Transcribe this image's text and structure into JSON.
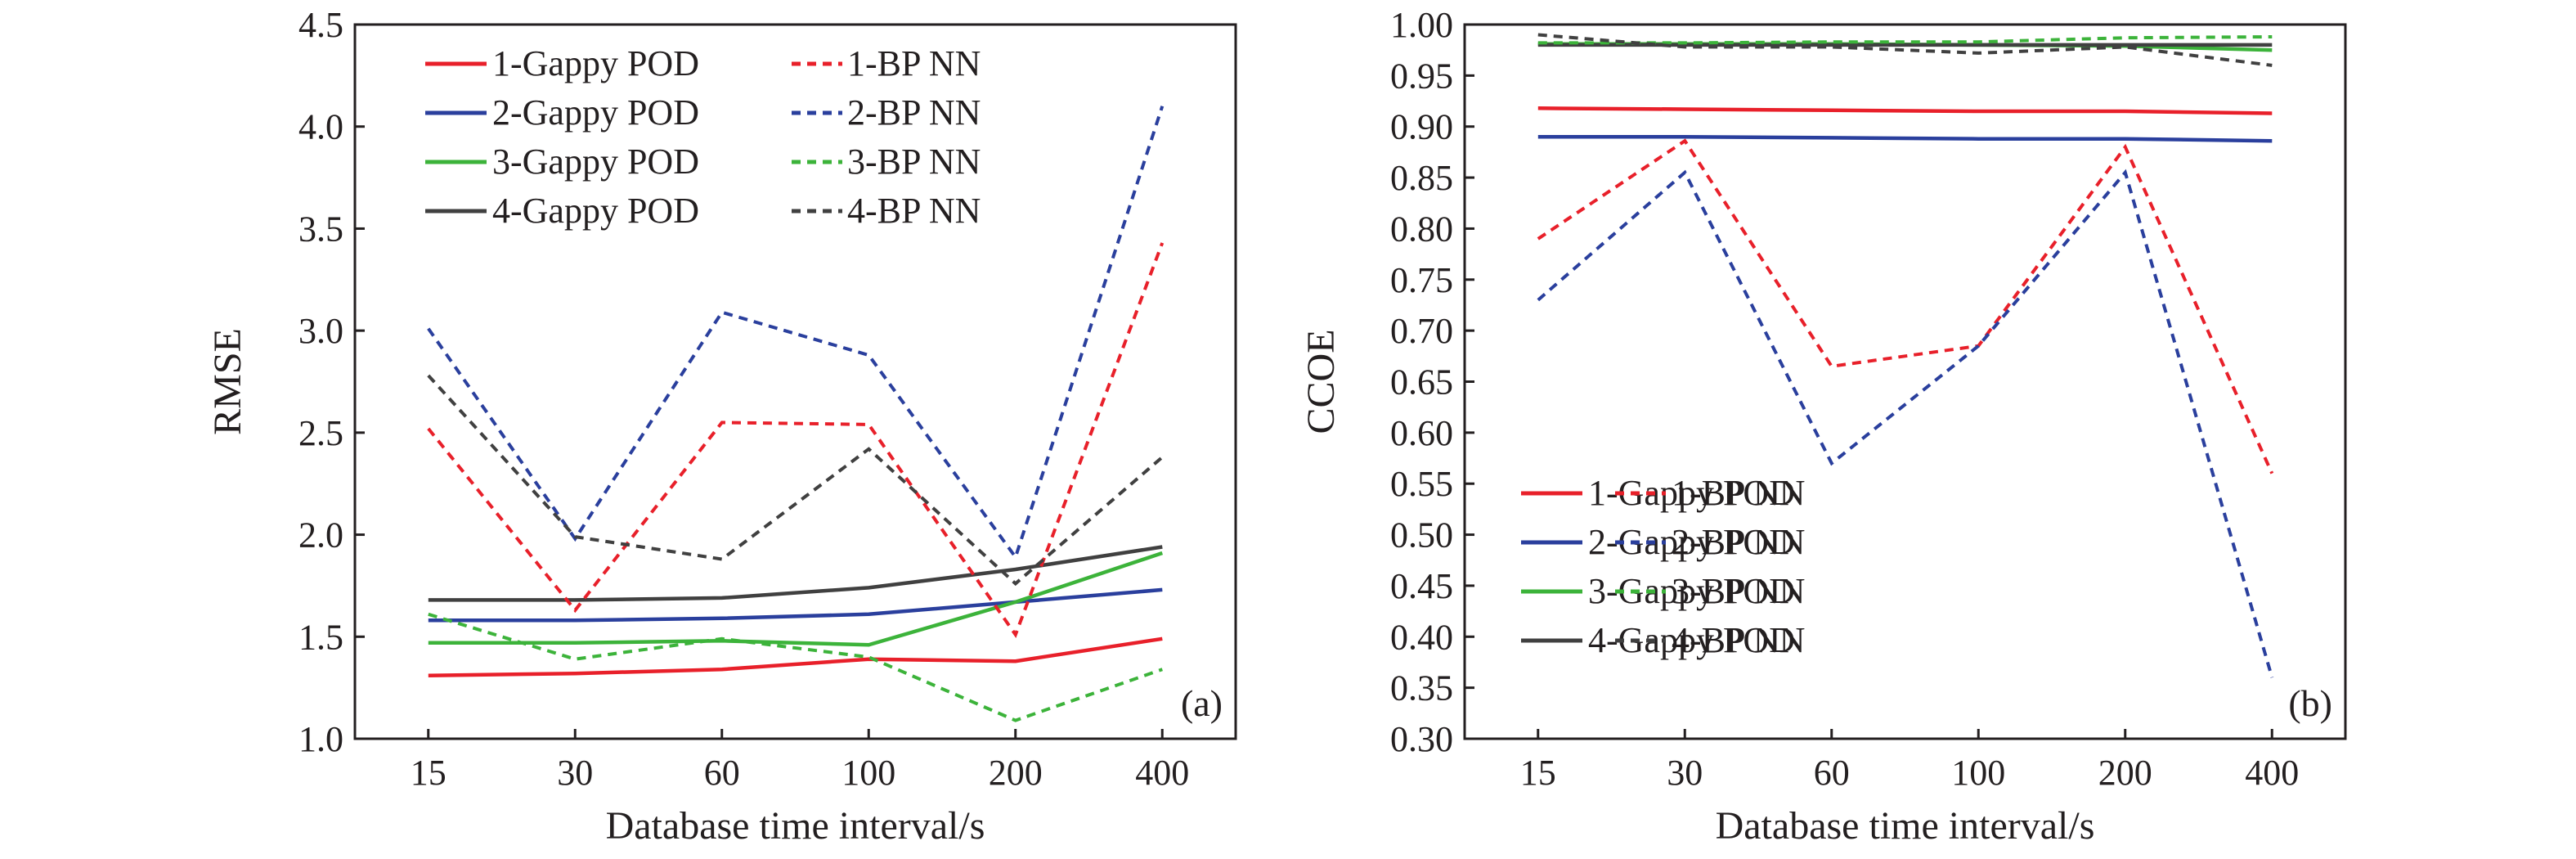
{
  "chart_data": [
    {
      "type": "line",
      "panel_label": "(a)",
      "xlabel": "Database time interval/s",
      "ylabel": "RMSE",
      "categories": [
        "15",
        "30",
        "60",
        "100",
        "200",
        "400"
      ],
      "ylim": [
        1.0,
        4.5
      ],
      "yticks": [
        "1.0",
        "1.5",
        "2.0",
        "2.5",
        "3.0",
        "3.5",
        "4.0",
        "4.5"
      ],
      "legend_position": "top-left",
      "series": [
        {
          "name": "1-Gappy POD",
          "color": "#e8202a",
          "dash": "solid",
          "values": [
            1.31,
            1.32,
            1.34,
            1.39,
            1.38,
            1.49
          ]
        },
        {
          "name": "1-BP NN",
          "color": "#e8202a",
          "dash": "dashed",
          "values": [
            2.52,
            1.63,
            2.55,
            2.54,
            1.51,
            3.43
          ]
        },
        {
          "name": "2-Gappy POD",
          "color": "#2a3f9d",
          "dash": "solid",
          "values": [
            1.58,
            1.58,
            1.59,
            1.61,
            1.67,
            1.73
          ]
        },
        {
          "name": "2-BP NN",
          "color": "#2a3f9d",
          "dash": "dashed",
          "values": [
            3.01,
            1.98,
            3.09,
            2.88,
            1.89,
            4.1
          ]
        },
        {
          "name": "3-Gappy POD",
          "color": "#3cb33a",
          "dash": "solid",
          "values": [
            1.47,
            1.47,
            1.48,
            1.46,
            1.67,
            1.91
          ]
        },
        {
          "name": "3-BP NN",
          "color": "#3cb33a",
          "dash": "dashed",
          "values": [
            1.61,
            1.39,
            1.49,
            1.4,
            1.09,
            1.34
          ]
        },
        {
          "name": "4-Gappy POD",
          "color": "#404040",
          "dash": "solid",
          "values": [
            1.68,
            1.68,
            1.69,
            1.74,
            1.83,
            1.94
          ]
        },
        {
          "name": "4-BP NN",
          "color": "#404040",
          "dash": "dashed",
          "values": [
            2.78,
            1.99,
            1.88,
            2.42,
            1.76,
            2.38
          ]
        }
      ]
    },
    {
      "type": "line",
      "panel_label": "(b)",
      "xlabel": "Database time interval/s",
      "ylabel": "CCOE",
      "categories": [
        "15",
        "30",
        "60",
        "100",
        "200",
        "400"
      ],
      "ylim": [
        0.3,
        1.0
      ],
      "yticks": [
        "0.30",
        "0.35",
        "0.40",
        "0.45",
        "0.50",
        "0.55",
        "0.60",
        "0.65",
        "0.70",
        "0.75",
        "0.80",
        "0.85",
        "0.90",
        "0.95",
        "1.00"
      ],
      "legend_position": "bottom-left",
      "series": [
        {
          "name": "1-Gappy POD",
          "color": "#e8202a",
          "dash": "solid",
          "values": [
            0.918,
            0.917,
            0.916,
            0.915,
            0.915,
            0.913
          ]
        },
        {
          "name": "1-BP NN",
          "color": "#e8202a",
          "dash": "dashed",
          "values": [
            0.79,
            0.886,
            0.665,
            0.685,
            0.88,
            0.56
          ]
        },
        {
          "name": "2-Gappy POD",
          "color": "#2a3f9d",
          "dash": "solid",
          "values": [
            0.89,
            0.89,
            0.889,
            0.888,
            0.888,
            0.886
          ]
        },
        {
          "name": "2-BP NN",
          "color": "#2a3f9d",
          "dash": "dashed",
          "values": [
            0.73,
            0.855,
            0.57,
            0.685,
            0.855,
            0.36
          ]
        },
        {
          "name": "3-Gappy POD",
          "color": "#3cb33a",
          "dash": "solid",
          "values": [
            0.981,
            0.981,
            0.981,
            0.98,
            0.979,
            0.975
          ]
        },
        {
          "name": "3-BP NN",
          "color": "#3cb33a",
          "dash": "dashed",
          "values": [
            0.982,
            0.982,
            0.983,
            0.983,
            0.987,
            0.988
          ]
        },
        {
          "name": "4-Gappy POD",
          "color": "#404040",
          "dash": "solid",
          "values": [
            0.98,
            0.98,
            0.98,
            0.98,
            0.98,
            0.98
          ]
        },
        {
          "name": "4-BP NN",
          "color": "#404040",
          "dash": "dashed",
          "values": [
            0.99,
            0.978,
            0.978,
            0.972,
            0.978,
            0.96
          ]
        }
      ]
    }
  ]
}
